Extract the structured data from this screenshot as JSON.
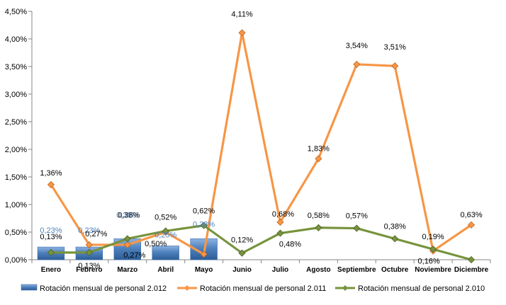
{
  "chart_data": {
    "type": "bar",
    "categories": [
      "Enero",
      "Febrero",
      "Marzo",
      "Abril",
      "Mayo",
      "Junio",
      "Julio",
      "Agosto",
      "Septiembre",
      "Octubre",
      "Noviembre",
      "Diciembre"
    ],
    "ylim": [
      0,
      4.5
    ],
    "y_tick_values": [
      0,
      0.5,
      1,
      1.5,
      2,
      2.5,
      3,
      3.5,
      4,
      4.5
    ],
    "y_tick_labels": [
      "0,00%",
      "0,50%",
      "1,00%",
      "1,50%",
      "2,00%",
      "2,50%",
      "3,00%",
      "3,50%",
      "4,00%",
      "4,50%"
    ],
    "grid": false,
    "legend_position": "bottom",
    "series": [
      {
        "name": "Rotación mensual  de personal 2.012",
        "kind": "bar",
        "color": "#4f81bd",
        "values": [
          0.23,
          0.23,
          0.38,
          0.25,
          0.38,
          null,
          null,
          null,
          null,
          null,
          null,
          null
        ],
        "labels": [
          "0,23%",
          "0,23%",
          "0,38%",
          "0,25%",
          "0,38%",
          null,
          null,
          null,
          null,
          null,
          null,
          null
        ]
      },
      {
        "name": "Rotación mensual  de personal 2.011",
        "kind": "line",
        "color": "#f79646",
        "values": [
          1.36,
          0.27,
          0.27,
          0.5,
          0.1,
          4.11,
          0.68,
          1.83,
          3.54,
          3.51,
          0.16,
          0.63
        ],
        "labels": [
          "1,36%",
          "0,27%",
          "0,27%",
          "0,50%",
          null,
          "4,11%",
          "0,68%",
          "1,83%",
          "3,54%",
          "3,51%",
          "0,16%",
          "0,63%"
        ]
      },
      {
        "name": "Rotación mensual  de personal 2.010",
        "kind": "line",
        "color": "#77933c",
        "values": [
          0.13,
          0.13,
          0.38,
          0.52,
          0.62,
          0.12,
          0.48,
          0.58,
          0.57,
          0.38,
          0.19,
          0.0
        ],
        "labels": [
          "0,13%",
          "0,13%",
          "0,38%",
          "0,52%",
          "0,62%",
          "0,12%",
          "0,48%",
          "0,58%",
          "0,57%",
          "0,38%",
          "0,19%",
          null
        ]
      }
    ]
  }
}
